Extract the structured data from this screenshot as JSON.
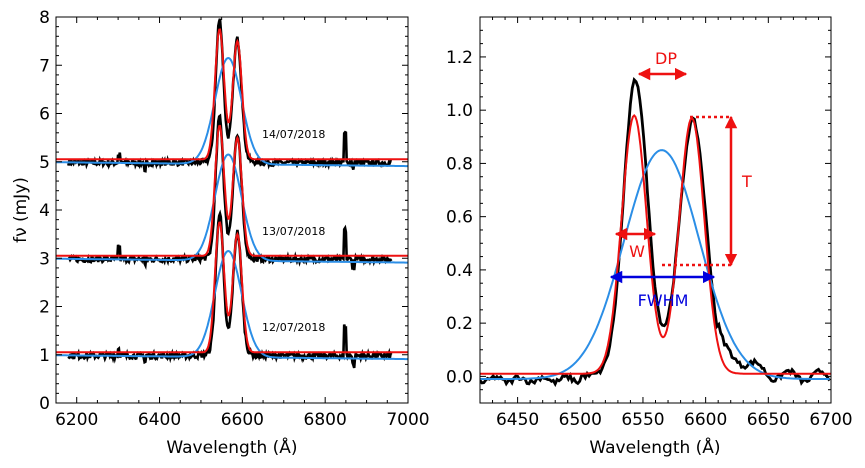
{
  "chart_data": [
    {
      "type": "line",
      "xlabel": "Wavelength (Å)",
      "ylabel": "fν (mJy)",
      "xlim": [
        6150,
        7000
      ],
      "ylim": [
        0,
        8
      ],
      "xticks": [
        6200,
        6400,
        6600,
        6800,
        7000
      ],
      "yticks": [
        0,
        1,
        2,
        3,
        4,
        5,
        6,
        7,
        8
      ],
      "annotations": [
        "14/07/2018",
        "13/07/2018",
        "12/07/2018"
      ],
      "spectra": [
        {
          "offset": 4,
          "base": 5.05
        },
        {
          "offset": 2,
          "base": 3.05
        },
        {
          "offset": 0,
          "base": 1.05
        }
      ],
      "colors": {
        "observed": "#000000",
        "double_peak_fit": "#ee1111",
        "gaussian_fit": "#2b8ee6"
      }
    },
    {
      "type": "line",
      "xlabel": "Wavelength (Å)",
      "xlim": [
        6420,
        6700
      ],
      "ylim": [
        -0.1,
        1.35
      ],
      "xticks": [
        6450,
        6500,
        6550,
        6600,
        6650,
        6700
      ],
      "yticks": [
        0.0,
        0.2,
        0.4,
        0.6,
        0.8,
        1.0,
        1.2
      ],
      "annotations": {
        "dp": "DP",
        "t": "T",
        "w": "W",
        "fwhm": "FWHM"
      },
      "colors": {
        "observed": "#000000",
        "double_peak_fit": "#ee1111",
        "gaussian_fit": "#2b8ee6",
        "fwhm": "#0000dd"
      }
    }
  ]
}
